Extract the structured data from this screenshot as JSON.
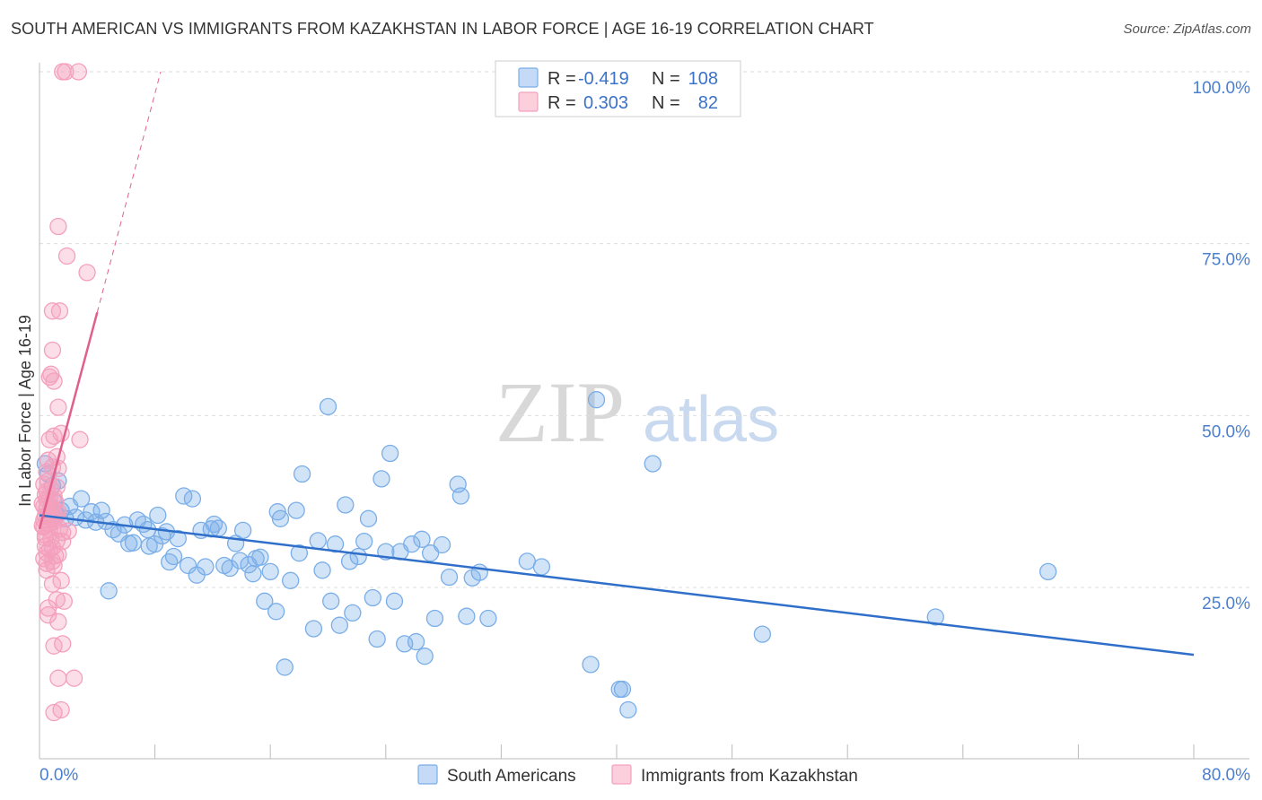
{
  "chart_data": {
    "type": "scatter",
    "title": "SOUTH AMERICAN VS IMMIGRANTS FROM KAZAKHSTAN IN LABOR FORCE | AGE 16-19 CORRELATION CHART",
    "source": "Source: ZipAtlas.com",
    "xlabel": "",
    "ylabel": "In Labor Force | Age 16-19",
    "xlim": [
      0,
      80
    ],
    "ylim": [
      2,
      102
    ],
    "x_tick_labels": {
      "min": "0.0%",
      "max": "80.0%"
    },
    "y_ticks": [
      {
        "value": 25,
        "label": "25.0%"
      },
      {
        "value": 50,
        "label": "50.0%"
      },
      {
        "value": 75,
        "label": "75.0%"
      },
      {
        "value": 100,
        "label": "100.0%"
      }
    ],
    "grid": true,
    "watermark": {
      "part1": "ZIP",
      "part2": "atlas"
    },
    "legend": {
      "r_label": "R =",
      "n_label": "N =",
      "entries": [
        {
          "r": "-0.419",
          "n": "108"
        },
        {
          "r": "0.303",
          "n": "82"
        }
      ]
    },
    "series": [
      {
        "name": "South Americans",
        "color": "#7aaee8",
        "line_color": "#2f6fc9",
        "trend": {
          "x0": 0,
          "y0": 35.5,
          "x1": 80,
          "y1": 15.2
        },
        "points": [
          [
            0.6,
            41.5
          ],
          [
            0.9,
            39.8
          ],
          [
            1.0,
            37.5
          ],
          [
            1.2,
            35.5
          ],
          [
            1.5,
            36.2
          ],
          [
            1.8,
            35.0
          ],
          [
            2.1,
            36.8
          ],
          [
            2.5,
            35.2
          ],
          [
            2.9,
            37.9
          ],
          [
            3.2,
            34.8
          ],
          [
            3.6,
            36.0
          ],
          [
            3.9,
            34.5
          ],
          [
            4.3,
            36.2
          ],
          [
            4.6,
            34.6
          ],
          [
            4.8,
            24.5
          ],
          [
            5.1,
            33.4
          ],
          [
            5.5,
            32.8
          ],
          [
            5.9,
            34.1
          ],
          [
            6.2,
            31.4
          ],
          [
            6.5,
            31.5
          ],
          [
            6.8,
            34.8
          ],
          [
            7.2,
            34.2
          ],
          [
            7.5,
            33.4
          ],
          [
            7.6,
            31.0
          ],
          [
            8.0,
            31.3
          ],
          [
            8.2,
            35.5
          ],
          [
            8.5,
            32.5
          ],
          [
            8.8,
            33.1
          ],
          [
            9.0,
            28.7
          ],
          [
            9.3,
            29.5
          ],
          [
            9.6,
            32.1
          ],
          [
            10.0,
            38.3
          ],
          [
            10.3,
            28.2
          ],
          [
            10.6,
            37.9
          ],
          [
            10.9,
            26.8
          ],
          [
            11.2,
            33.3
          ],
          [
            11.5,
            28.0
          ],
          [
            11.9,
            33.5
          ],
          [
            12.1,
            34.2
          ],
          [
            12.4,
            33.6
          ],
          [
            12.8,
            28.2
          ],
          [
            13.2,
            27.8
          ],
          [
            13.6,
            31.4
          ],
          [
            13.9,
            28.9
          ],
          [
            14.1,
            33.3
          ],
          [
            14.5,
            28.3
          ],
          [
            14.8,
            27.0
          ],
          [
            15.0,
            29.2
          ],
          [
            15.3,
            29.4
          ],
          [
            15.6,
            23.0
          ],
          [
            16.0,
            27.3
          ],
          [
            16.4,
            21.5
          ],
          [
            16.7,
            35.0
          ],
          [
            16.5,
            36.0
          ],
          [
            17.0,
            13.4
          ],
          [
            17.4,
            26.0
          ],
          [
            17.8,
            36.2
          ],
          [
            18.0,
            30.0
          ],
          [
            18.2,
            41.5
          ],
          [
            19.0,
            19.0
          ],
          [
            19.3,
            31.8
          ],
          [
            19.6,
            27.5
          ],
          [
            20.0,
            51.3
          ],
          [
            20.2,
            23.0
          ],
          [
            20.5,
            31.3
          ],
          [
            20.8,
            19.5
          ],
          [
            21.2,
            37.0
          ],
          [
            21.5,
            28.8
          ],
          [
            21.7,
            21.3
          ],
          [
            22.1,
            29.5
          ],
          [
            22.5,
            31.7
          ],
          [
            22.8,
            35.0
          ],
          [
            23.1,
            23.5
          ],
          [
            23.4,
            17.5
          ],
          [
            23.7,
            40.8
          ],
          [
            24.0,
            30.2
          ],
          [
            24.3,
            44.5
          ],
          [
            24.6,
            23.0
          ],
          [
            25.0,
            30.2
          ],
          [
            25.3,
            16.8
          ],
          [
            25.8,
            31.3
          ],
          [
            26.1,
            17.1
          ],
          [
            26.5,
            32.0
          ],
          [
            26.7,
            15.0
          ],
          [
            27.1,
            30.0
          ],
          [
            27.4,
            20.5
          ],
          [
            27.9,
            31.2
          ],
          [
            28.4,
            26.5
          ],
          [
            29.0,
            40.0
          ],
          [
            29.2,
            38.3
          ],
          [
            29.6,
            20.8
          ],
          [
            30.0,
            26.4
          ],
          [
            30.5,
            27.2
          ],
          [
            31.1,
            20.5
          ],
          [
            33.8,
            28.8
          ],
          [
            34.8,
            28.0
          ],
          [
            38.2,
            13.8
          ],
          [
            38.6,
            52.3
          ],
          [
            40.2,
            10.2
          ],
          [
            40.4,
            10.2
          ],
          [
            40.8,
            7.2
          ],
          [
            42.5,
            43.0
          ],
          [
            50.1,
            18.2
          ],
          [
            62.1,
            20.7
          ],
          [
            69.9,
            27.3
          ],
          [
            0.4,
            43.0
          ],
          [
            1.3,
            40.5
          ],
          [
            0.8,
            36.5
          ]
        ]
      },
      {
        "name": "Immigrants from Kazakhstan",
        "color": "#f4a0bd",
        "line_color": "#e0608a",
        "trend": {
          "x0": 0,
          "y0": 33.5,
          "x1": 4.0,
          "y1": 65.0
        },
        "trend_dashed": {
          "x0": 4.0,
          "y0": 65.0,
          "x1": 8.4,
          "y1": 100.0
        },
        "points": [
          [
            1.6,
            100.0
          ],
          [
            1.8,
            100.0
          ],
          [
            2.7,
            100.0
          ],
          [
            1.3,
            77.5
          ],
          [
            1.9,
            73.2
          ],
          [
            3.3,
            70.8
          ],
          [
            0.9,
            65.2
          ],
          [
            1.4,
            65.2
          ],
          [
            0.9,
            59.5
          ],
          [
            0.8,
            56.0
          ],
          [
            1.0,
            55.0
          ],
          [
            0.7,
            55.6
          ],
          [
            1.3,
            51.2
          ],
          [
            2.8,
            46.5
          ],
          [
            0.7,
            46.5
          ],
          [
            1.0,
            47.0
          ],
          [
            1.5,
            47.4
          ],
          [
            0.6,
            43.5
          ],
          [
            1.2,
            44.0
          ],
          [
            0.9,
            42.5
          ],
          [
            1.3,
            42.3
          ],
          [
            0.5,
            41.8
          ],
          [
            0.6,
            40.5
          ],
          [
            0.8,
            39.3
          ],
          [
            1.2,
            39.6
          ],
          [
            0.4,
            38.5
          ],
          [
            0.7,
            38.0
          ],
          [
            1.1,
            37.5
          ],
          [
            0.5,
            36.5
          ],
          [
            0.9,
            36.1
          ],
          [
            1.3,
            36.0
          ],
          [
            0.4,
            35.4
          ],
          [
            0.8,
            35.0
          ],
          [
            1.2,
            35.8
          ],
          [
            0.3,
            34.8
          ],
          [
            0.6,
            34.2
          ],
          [
            1.0,
            34.6
          ],
          [
            0.3,
            33.8
          ],
          [
            0.7,
            33.4
          ],
          [
            1.6,
            33.0
          ],
          [
            2.0,
            33.2
          ],
          [
            0.4,
            32.6
          ],
          [
            0.8,
            32.1
          ],
          [
            1.2,
            31.8
          ],
          [
            1.6,
            31.7
          ],
          [
            0.4,
            31.0
          ],
          [
            0.9,
            30.8
          ],
          [
            0.5,
            30.0
          ],
          [
            1.1,
            29.6
          ],
          [
            1.3,
            29.8
          ],
          [
            0.5,
            28.5
          ],
          [
            0.9,
            28.8
          ],
          [
            0.5,
            27.5
          ],
          [
            1.5,
            26.0
          ],
          [
            0.9,
            25.5
          ],
          [
            1.2,
            23.2
          ],
          [
            1.7,
            23.0
          ],
          [
            0.6,
            22.0
          ],
          [
            0.6,
            21.0
          ],
          [
            1.3,
            20.0
          ],
          [
            1.0,
            16.5
          ],
          [
            1.6,
            16.8
          ],
          [
            1.3,
            11.8
          ],
          [
            2.4,
            11.8
          ],
          [
            1.0,
            6.8
          ],
          [
            1.5,
            7.2
          ],
          [
            0.3,
            40.0
          ],
          [
            0.3,
            36.8
          ],
          [
            0.5,
            39.0
          ],
          [
            1.0,
            38.3
          ],
          [
            0.8,
            36.8
          ],
          [
            0.6,
            35.6
          ],
          [
            0.4,
            32.2
          ],
          [
            0.7,
            30.5
          ],
          [
            0.3,
            29.2
          ],
          [
            1.0,
            28.2
          ],
          [
            0.2,
            34.0
          ],
          [
            0.2,
            37.2
          ],
          [
            1.4,
            33.5
          ],
          [
            0.9,
            34.9
          ],
          [
            0.5,
            37.8
          ],
          [
            1.1,
            35.2
          ]
        ]
      }
    ]
  }
}
